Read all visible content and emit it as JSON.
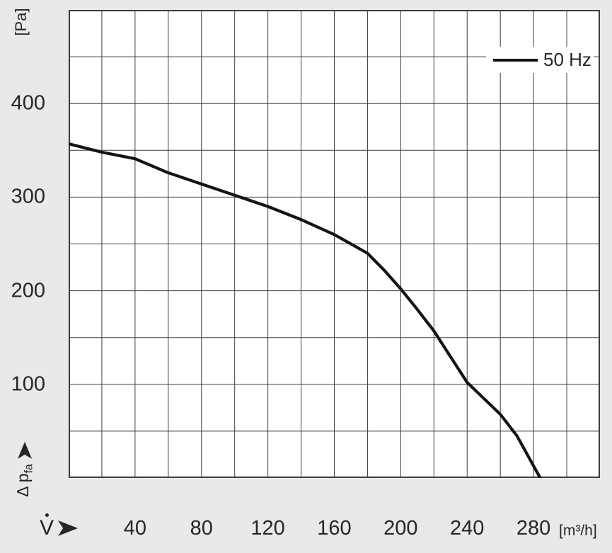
{
  "page": {
    "background_color": "#e9e9ea",
    "plot_background_color": "#ffffff",
    "text_color": "#262626"
  },
  "axes": {
    "y": {
      "unit": "[Pa]",
      "label_main": "Δ p",
      "label_sub": "fa",
      "tick_labels": [
        "100",
        "200",
        "300",
        "400"
      ]
    },
    "x": {
      "symbol": "V",
      "unit": "[m³/h]",
      "tick_labels": [
        "40",
        "80",
        "120",
        "160",
        "200",
        "240",
        "280"
      ]
    }
  },
  "legend": {
    "items": [
      {
        "label": "50 Hz",
        "color": "#141414"
      }
    ]
  },
  "chart_data": {
    "type": "line",
    "title": "",
    "xlabel": "V̇",
    "x_unit": "[m³/h]",
    "ylabel": "Δ p_fa",
    "y_unit": "[Pa]",
    "xlim": [
      0,
      320
    ],
    "ylim": [
      0,
      500
    ],
    "x_grid_step": 20,
    "y_grid_step": 50,
    "x_major_ticks": [
      40,
      80,
      120,
      160,
      200,
      240,
      280
    ],
    "y_major_ticks": [
      100,
      200,
      300,
      400
    ],
    "grid": "on",
    "grid_color": "#3d3d3d",
    "border_color": "#3d3d3d",
    "legend_position": "top-right",
    "series": [
      {
        "name": "50 Hz",
        "color": "#141414",
        "points": [
          [
            0,
            357
          ],
          [
            20,
            348
          ],
          [
            40,
            341
          ],
          [
            60,
            326
          ],
          [
            80,
            314
          ],
          [
            100,
            302
          ],
          [
            120,
            290
          ],
          [
            140,
            276
          ],
          [
            160,
            260
          ],
          [
            170,
            250
          ],
          [
            180,
            240
          ],
          [
            190,
            222
          ],
          [
            200,
            202
          ],
          [
            210,
            180
          ],
          [
            220,
            157
          ],
          [
            240,
            102
          ],
          [
            260,
            68
          ],
          [
            270,
            45
          ],
          [
            284,
            0
          ]
        ]
      }
    ]
  }
}
